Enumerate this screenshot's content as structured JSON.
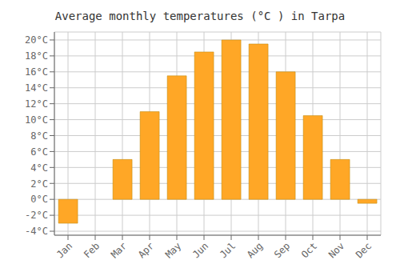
{
  "chart_data": {
    "type": "bar",
    "title": "Average monthly temperatures (°C ) in Tarpa",
    "categories": [
      "Jan",
      "Feb",
      "Mar",
      "Apr",
      "May",
      "Jun",
      "Jul",
      "Aug",
      "Sep",
      "Oct",
      "Nov",
      "Dec"
    ],
    "values": [
      -3.0,
      0.0,
      5.0,
      11.0,
      15.5,
      18.5,
      20.0,
      19.5,
      16.0,
      10.5,
      5.0,
      -0.5
    ],
    "color": "#FFA726",
    "ylim": [
      -4.5,
      21
    ],
    "yticks": [
      {
        "value": -4,
        "label": "-4°C"
      },
      {
        "value": -2,
        "label": "-2°C"
      },
      {
        "value": 0,
        "label": "0°C"
      },
      {
        "value": 2,
        "label": "2°C"
      },
      {
        "value": 4,
        "label": "4°C"
      },
      {
        "value": 6,
        "label": "6°C"
      },
      {
        "value": 8,
        "label": "8°C"
      },
      {
        "value": 10,
        "label": "10°C"
      },
      {
        "value": 12,
        "label": "12°C"
      },
      {
        "value": 14,
        "label": "14°C"
      },
      {
        "value": 16,
        "label": "16°C"
      },
      {
        "value": 18,
        "label": "18°C"
      },
      {
        "value": 20,
        "label": "20°C"
      }
    ],
    "grid": true
  }
}
